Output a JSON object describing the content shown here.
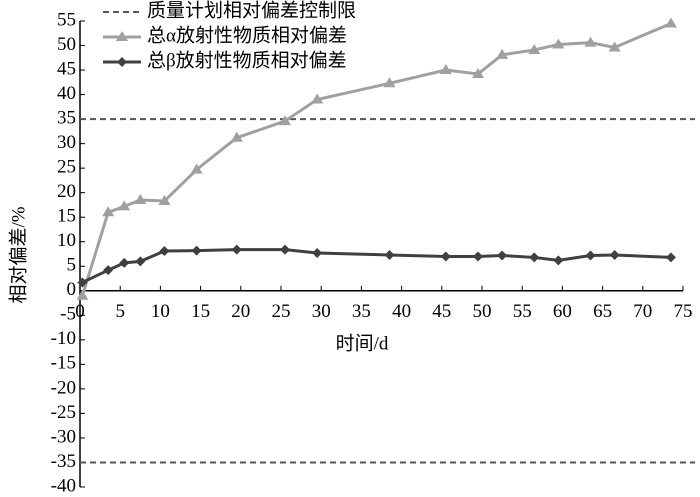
{
  "chart_data": {
    "type": "line",
    "x_label": "时间/d",
    "y_label": "相对偏差/%",
    "xlim": [
      0,
      75
    ],
    "xticks": [
      0,
      5,
      10,
      15,
      20,
      25,
      30,
      35,
      40,
      45,
      50,
      55,
      60,
      65,
      70,
      75
    ],
    "ylim": [
      -40,
      55
    ],
    "yticks": [
      -40,
      -35,
      -30,
      -25,
      -20,
      -15,
      -10,
      -5,
      0,
      5,
      10,
      15,
      20,
      25,
      30,
      35,
      40,
      45,
      50,
      55
    ],
    "limits": {
      "name": "质量计划相对偏差控制限",
      "color": "#555555",
      "values": [
        35,
        -35
      ]
    },
    "x": [
      0.3,
      3.5,
      5.5,
      7.5,
      10.5,
      14.5,
      19.5,
      25.5,
      29.5,
      38.5,
      45.5,
      49.5,
      52.5,
      56.5,
      59.5,
      63.5,
      66.5,
      73.5
    ],
    "series": [
      {
        "name": "总α放射性物质相对偏差",
        "color": "#a0a0a0",
        "marker": "triangle",
        "values": [
          -1,
          16,
          17.2,
          18.5,
          18.3,
          24.7,
          31.2,
          34.6,
          39,
          42.3,
          45,
          44.2,
          48.1,
          49.1,
          50.2,
          50.6,
          49.6,
          54.5
        ]
      },
      {
        "name": "总β放射性物质相对偏差",
        "color": "#404040",
        "marker": "diamond",
        "values": [
          1.7,
          4.2,
          5.7,
          6,
          8.1,
          8.2,
          8.4,
          8.4,
          7.7,
          7.3,
          7,
          7,
          7.2,
          6.8,
          6.2,
          7.2,
          7.3,
          6.8
        ]
      }
    ]
  }
}
